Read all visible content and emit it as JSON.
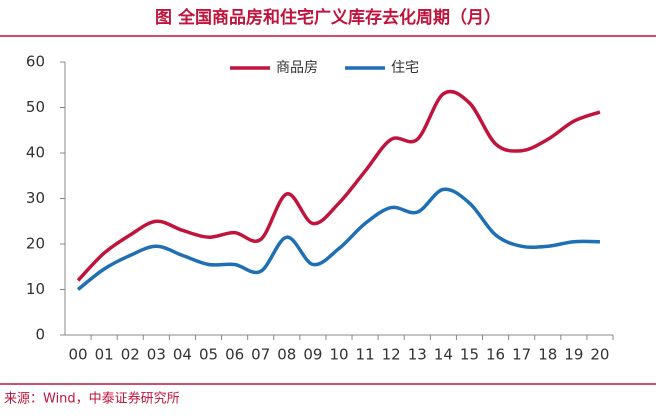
{
  "chart_data": {
    "type": "line",
    "title": "图  全国商品房和住宅广义库存去化周期（月）",
    "source": "来源：Wind，中泰证券研究所",
    "categories": [
      "00",
      "01",
      "02",
      "03",
      "04",
      "05",
      "06",
      "07",
      "08",
      "09",
      "10",
      "11",
      "12",
      "13",
      "14",
      "15",
      "16",
      "17",
      "18",
      "19",
      "20"
    ],
    "series": [
      {
        "name": "商品房",
        "color": "#c0143c",
        "values": [
          12,
          18,
          22,
          25,
          23,
          21.5,
          22.5,
          21,
          31,
          24.5,
          29,
          36,
          43,
          43,
          53,
          51,
          42,
          40.5,
          43,
          47,
          49
        ]
      },
      {
        "name": "住宅",
        "color": "#1f6fb5",
        "values": [
          10,
          14.5,
          17.5,
          19.5,
          17.5,
          15.5,
          15.5,
          14,
          21.5,
          15.5,
          19,
          24.5,
          28,
          27,
          32,
          29,
          22,
          19.5,
          19.5,
          20.5,
          20.5
        ]
      }
    ],
    "ylim": [
      0,
      60
    ],
    "yticks": [
      0,
      10,
      20,
      30,
      40,
      50,
      60
    ],
    "grid": false
  }
}
